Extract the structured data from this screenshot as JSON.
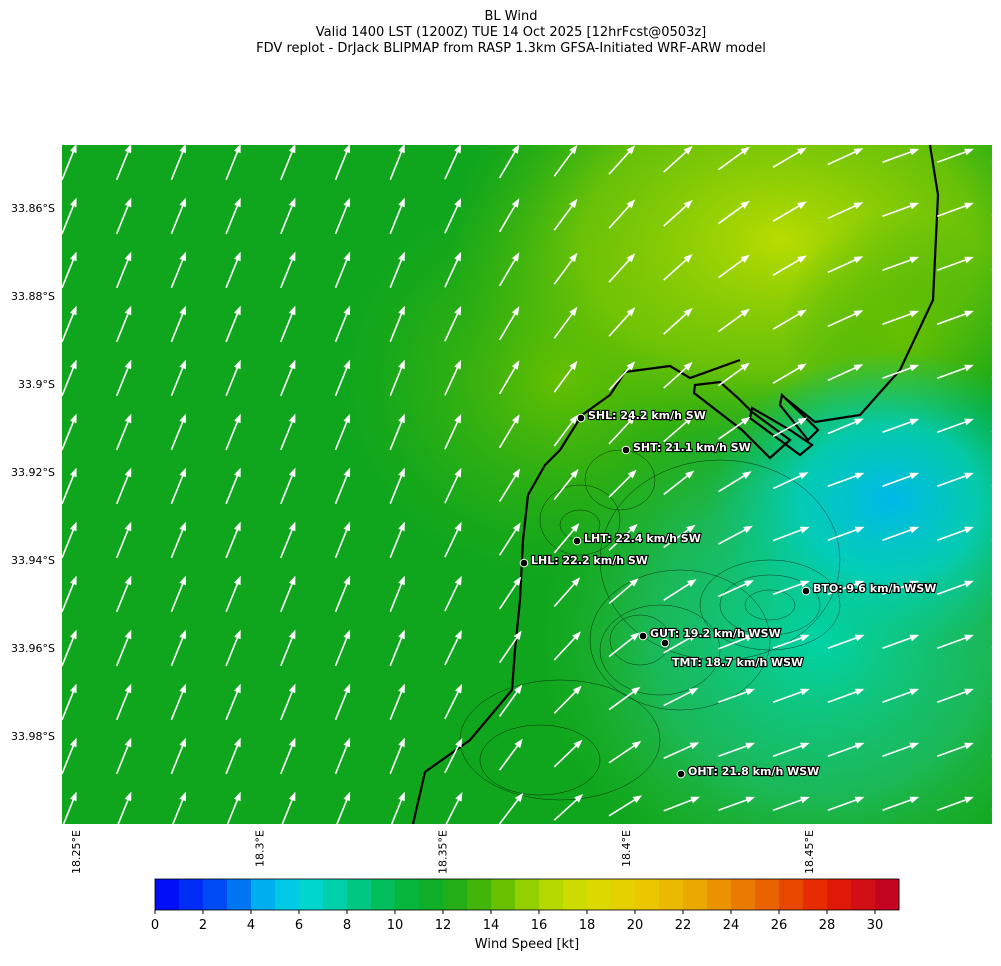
{
  "header": {
    "title": "BL Wind",
    "subtitle": "Valid 1400 LST (1200Z) TUE 14 Oct 2025 [12hrFcst@0503z]",
    "source": "FDV replot - DrJack BLIPMAP from RASP 1.3km GFSA-Initiated WRF-ARW model"
  },
  "map": {
    "lat_ticks": [
      {
        "value": 33.86,
        "label": "33.86°S"
      },
      {
        "value": 33.88,
        "label": "33.88°S"
      },
      {
        "value": 33.9,
        "label": "33.9°S"
      },
      {
        "value": 33.92,
        "label": "33.92°S"
      },
      {
        "value": 33.94,
        "label": "33.94°S"
      },
      {
        "value": 33.96,
        "label": "33.96°S"
      },
      {
        "value": 33.98,
        "label": "33.98°S"
      }
    ],
    "lon_ticks": [
      {
        "value": 18.25,
        "label": "18.25°E"
      },
      {
        "value": 18.3,
        "label": "18.3°E"
      },
      {
        "value": 18.35,
        "label": "18.35°E"
      },
      {
        "value": 18.4,
        "label": "18.4°E"
      },
      {
        "value": 18.45,
        "label": "18.45°E"
      }
    ],
    "stations": [
      "SHL: 24.2 km/h SW",
      "SHT: 21.1 km/h SW",
      "LHT: 22.4 km/h SW",
      "LHL: 22.2 km/h SW",
      "BTO: 9.6 km/h WSW",
      "GUT: 19.2 km/h WSW",
      "TMT: 18.7 km/h WSW",
      "OHT: 21.8 km/h WSW"
    ]
  },
  "colorbar": {
    "label": "Wind Speed [kt]",
    "lim": [
      0,
      31
    ],
    "ticks": [
      0,
      2,
      4,
      6,
      8,
      10,
      12,
      14,
      16,
      18,
      20,
      22,
      24,
      26,
      28,
      30
    ]
  }
}
